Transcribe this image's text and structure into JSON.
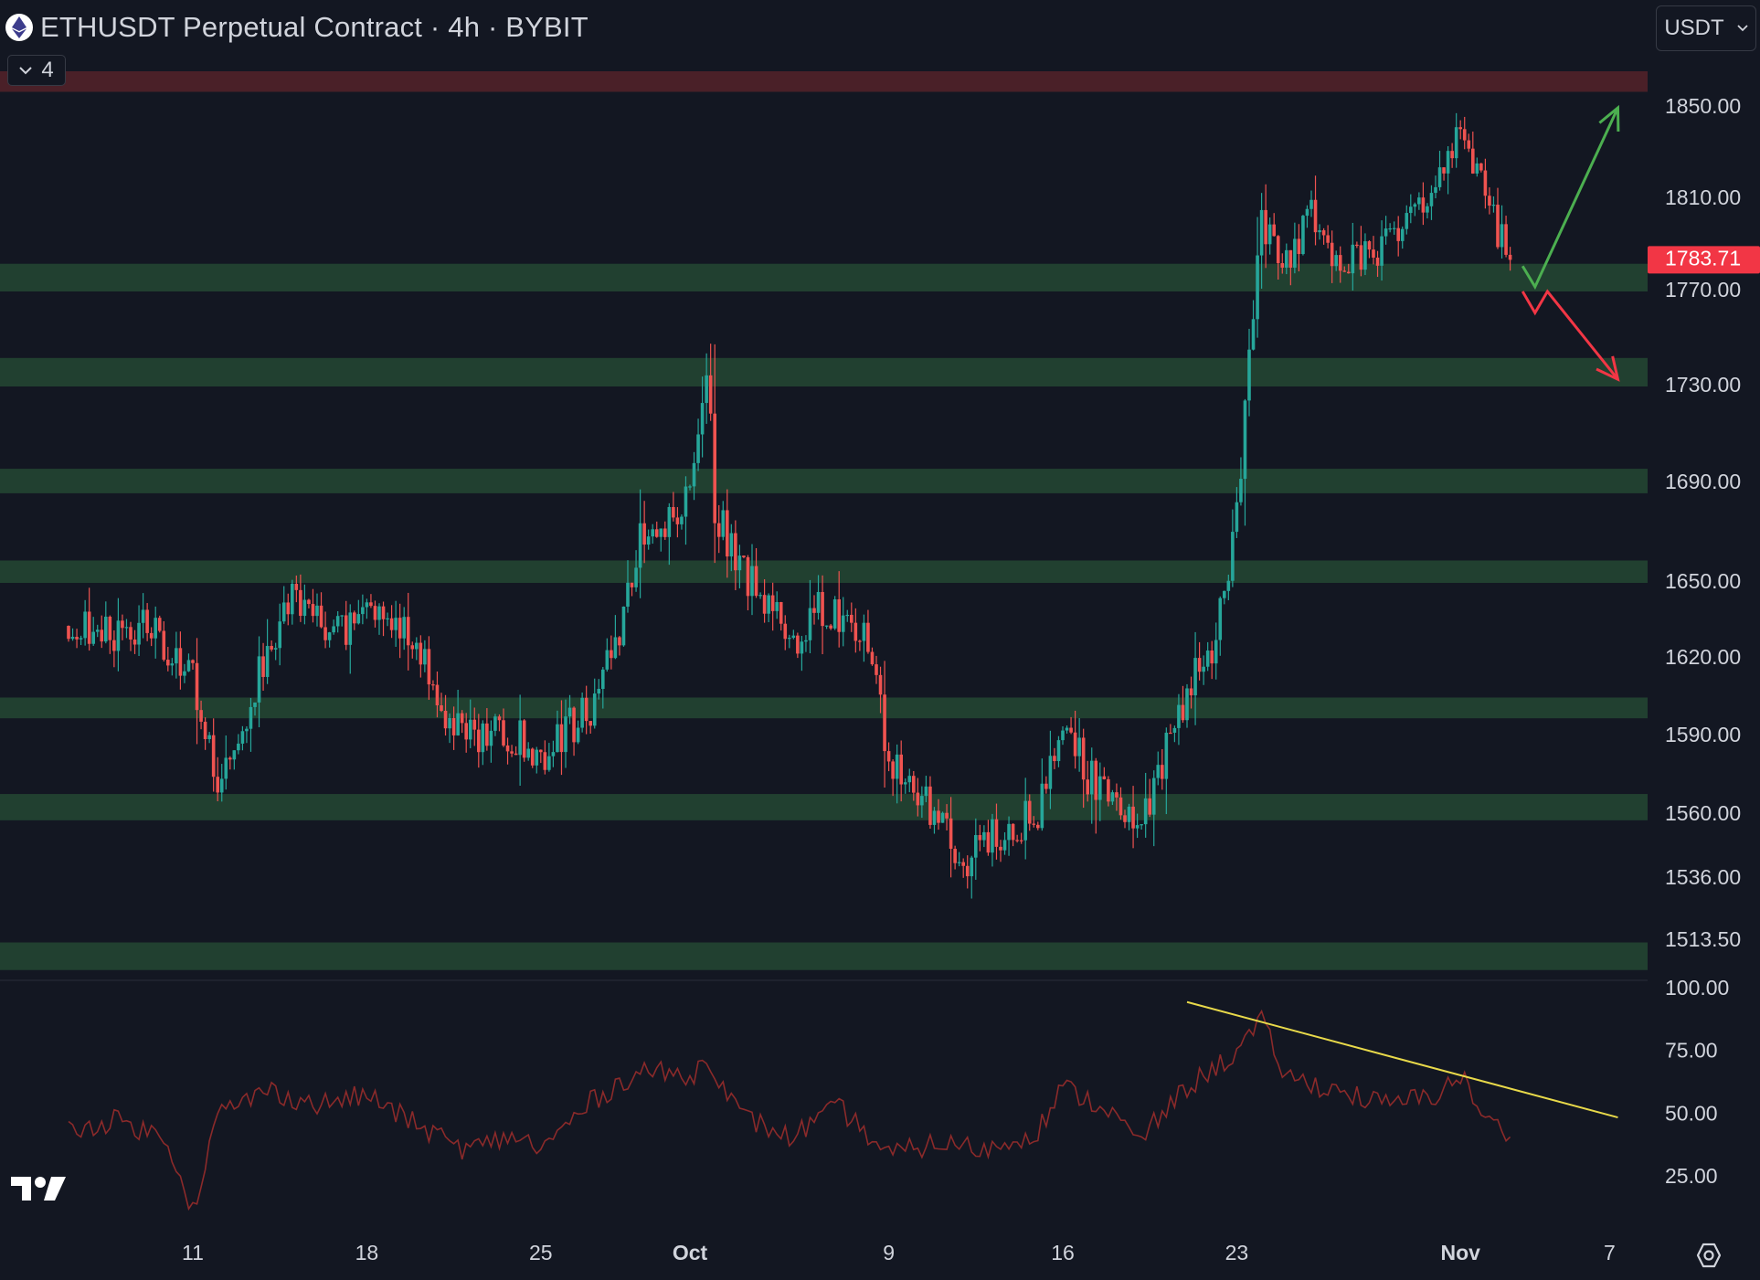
{
  "header": {
    "title": "ETHUSDT Perpetual Contract · 4h · BYBIT",
    "indicator_count": "4",
    "currency": "USDT"
  },
  "colors": {
    "background": "#131722",
    "up": "#26a69a",
    "down": "#ef5350",
    "support_zone": "#214030",
    "resistance_zone": "#4a2028",
    "rsi_line": "#8b2a2a",
    "trendline": "#e8d94a",
    "arrow_up": "#4caf50",
    "arrow_down": "#f23645",
    "last_price_bg": "#f23645"
  },
  "chart_data": [
    {
      "type": "candlestick",
      "title": "ETHUSDT Perpetual Contract · 4h · BYBIT",
      "y_axis_ticks": [
        "1850.00",
        "1810.00",
        "1770.00",
        "1730.00",
        "1690.00",
        "1650.00",
        "1620.00",
        "1590.00",
        "1560.00",
        "1536.00",
        "1513.50"
      ],
      "x_axis_ticks": [
        "11",
        "18",
        "25",
        "Oct",
        "9",
        "16",
        "23",
        "Nov",
        "7"
      ],
      "last_price": "1783.71",
      "ylim": [
        1505,
        1875
      ],
      "path_points": [
        {
          "date": "2023-09-06",
          "price": 1633
        },
        {
          "date": "2023-09-08",
          "price": 1630
        },
        {
          "date": "2023-09-09",
          "price": 1635
        },
        {
          "date": "2023-09-11",
          "price": 1612
        },
        {
          "date": "2023-09-12",
          "price": 1575
        },
        {
          "date": "2023-09-13",
          "price": 1595
        },
        {
          "date": "2023-09-14",
          "price": 1625
        },
        {
          "date": "2023-09-15",
          "price": 1645
        },
        {
          "date": "2023-09-17",
          "price": 1630
        },
        {
          "date": "2023-09-18",
          "price": 1640
        },
        {
          "date": "2023-09-19",
          "price": 1635
        },
        {
          "date": "2023-09-20",
          "price": 1625
        },
        {
          "date": "2023-09-21",
          "price": 1600
        },
        {
          "date": "2023-09-22",
          "price": 1592
        },
        {
          "date": "2023-09-24",
          "price": 1590
        },
        {
          "date": "2023-09-25",
          "price": 1580
        },
        {
          "date": "2023-09-26",
          "price": 1593
        },
        {
          "date": "2023-09-27",
          "price": 1600
        },
        {
          "date": "2023-09-28",
          "price": 1625
        },
        {
          "date": "2023-09-29",
          "price": 1668
        },
        {
          "date": "2023-09-30",
          "price": 1673
        },
        {
          "date": "2023-10-01",
          "price": 1690
        },
        {
          "date": "2023-10-01T18:00",
          "price": 1735
        },
        {
          "date": "2023-10-02",
          "price": 1680
        },
        {
          "date": "2023-10-03",
          "price": 1655
        },
        {
          "date": "2023-10-04",
          "price": 1645
        },
        {
          "date": "2023-10-05",
          "price": 1625
        },
        {
          "date": "2023-10-06",
          "price": 1640
        },
        {
          "date": "2023-10-07",
          "price": 1635
        },
        {
          "date": "2023-10-08",
          "price": 1630
        },
        {
          "date": "2023-10-09",
          "price": 1583
        },
        {
          "date": "2023-10-10",
          "price": 1570
        },
        {
          "date": "2023-10-11",
          "price": 1560
        },
        {
          "date": "2023-10-12",
          "price": 1543
        },
        {
          "date": "2023-10-13",
          "price": 1550
        },
        {
          "date": "2023-10-14",
          "price": 1555
        },
        {
          "date": "2023-10-15",
          "price": 1560
        },
        {
          "date": "2023-10-16",
          "price": 1595
        },
        {
          "date": "2023-10-17",
          "price": 1575
        },
        {
          "date": "2023-10-18",
          "price": 1565
        },
        {
          "date": "2023-10-19",
          "price": 1553
        },
        {
          "date": "2023-10-20",
          "price": 1580
        },
        {
          "date": "2023-10-21",
          "price": 1608
        },
        {
          "date": "2023-10-22",
          "price": 1625
        },
        {
          "date": "2023-10-23",
          "price": 1675
        },
        {
          "date": "2023-10-23T16:00",
          "price": 1760
        },
        {
          "date": "2023-10-24",
          "price": 1800
        },
        {
          "date": "2023-10-25",
          "price": 1785
        },
        {
          "date": "2023-10-26",
          "price": 1803
        },
        {
          "date": "2023-10-27",
          "price": 1780
        },
        {
          "date": "2023-10-28",
          "price": 1785
        },
        {
          "date": "2023-10-29",
          "price": 1790
        },
        {
          "date": "2023-10-30",
          "price": 1808
        },
        {
          "date": "2023-10-31",
          "price": 1812
        },
        {
          "date": "2023-11-01",
          "price": 1840
        },
        {
          "date": "2023-11-02",
          "price": 1810
        },
        {
          "date": "2023-11-03",
          "price": 1784
        }
      ],
      "horizontal_zones": [
        {
          "kind": "resistance",
          "from": 1857,
          "to": 1866
        },
        {
          "kind": "support",
          "from": 1770,
          "to": 1782
        },
        {
          "kind": "support",
          "from": 1730,
          "to": 1742
        },
        {
          "kind": "support",
          "from": 1686,
          "to": 1696
        },
        {
          "kind": "support",
          "from": 1650,
          "to": 1659
        },
        {
          "kind": "support",
          "from": 1597,
          "to": 1605
        },
        {
          "kind": "support",
          "from": 1558,
          "to": 1568
        },
        {
          "kind": "support",
          "from": 1503,
          "to": 1513
        }
      ],
      "projections": [
        {
          "direction": "up",
          "points": [
            {
              "date": "2023-11-03T12:00",
              "price": 1781
            },
            {
              "date": "2023-11-04",
              "price": 1772
            },
            {
              "date": "2023-11-07T08:00",
              "price": 1850
            }
          ]
        },
        {
          "direction": "down",
          "points": [
            {
              "date": "2023-11-03T12:00",
              "price": 1770
            },
            {
              "date": "2023-11-04",
              "price": 1761
            },
            {
              "date": "2023-11-04T12:00",
              "price": 1770
            },
            {
              "date": "2023-11-07T08:00",
              "price": 1733
            }
          ]
        }
      ]
    },
    {
      "type": "line",
      "title": "",
      "y_axis_ticks": [
        "100.00",
        "75.00",
        "50.00",
        "25.00"
      ],
      "ylim": [
        0,
        100
      ],
      "path_points": [
        {
          "date": "2023-09-06",
          "value": 44
        },
        {
          "date": "2023-09-08",
          "value": 48
        },
        {
          "date": "2023-09-10",
          "value": 40
        },
        {
          "date": "2023-09-11",
          "value": 12
        },
        {
          "date": "2023-09-12",
          "value": 50
        },
        {
          "date": "2023-09-14",
          "value": 60
        },
        {
          "date": "2023-09-16",
          "value": 54
        },
        {
          "date": "2023-09-18",
          "value": 58
        },
        {
          "date": "2023-09-20",
          "value": 46
        },
        {
          "date": "2023-09-22",
          "value": 36
        },
        {
          "date": "2023-09-24",
          "value": 42
        },
        {
          "date": "2023-09-25",
          "value": 36
        },
        {
          "date": "2023-09-27",
          "value": 55
        },
        {
          "date": "2023-09-29",
          "value": 68
        },
        {
          "date": "2023-10-01",
          "value": 65
        },
        {
          "date": "2023-10-01T18:00",
          "value": 73
        },
        {
          "date": "2023-10-03",
          "value": 50
        },
        {
          "date": "2023-10-05",
          "value": 41
        },
        {
          "date": "2023-10-07",
          "value": 53
        },
        {
          "date": "2023-10-09",
          "value": 34
        },
        {
          "date": "2023-10-11",
          "value": 39
        },
        {
          "date": "2023-10-13",
          "value": 36
        },
        {
          "date": "2023-10-15",
          "value": 44
        },
        {
          "date": "2023-10-16",
          "value": 61
        },
        {
          "date": "2023-10-18",
          "value": 51
        },
        {
          "date": "2023-10-19",
          "value": 39
        },
        {
          "date": "2023-10-21",
          "value": 61
        },
        {
          "date": "2023-10-23",
          "value": 75
        },
        {
          "date": "2023-10-24",
          "value": 87
        },
        {
          "date": "2023-10-25",
          "value": 65
        },
        {
          "date": "2023-10-27",
          "value": 60
        },
        {
          "date": "2023-10-29",
          "value": 54
        },
        {
          "date": "2023-10-31",
          "value": 58
        },
        {
          "date": "2023-11-01",
          "value": 66
        },
        {
          "date": "2023-11-02",
          "value": 48
        },
        {
          "date": "2023-11-03",
          "value": 42
        }
      ],
      "trendline": [
        {
          "date": "2023-10-21",
          "value": 95
        },
        {
          "date": "2023-11-07T08:00",
          "value": 49
        }
      ]
    }
  ]
}
